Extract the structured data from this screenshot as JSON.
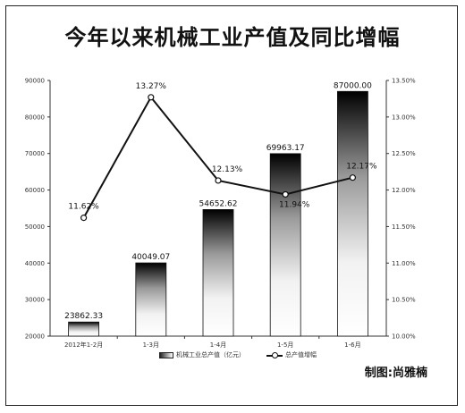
{
  "title": "今年以来机械工业产值及同比增幅",
  "credit": "制图:尚雅楠",
  "chart_data": {
    "type": "bar",
    "categories": [
      "2012年1-2月",
      "1-3月",
      "1-4月",
      "1-5月",
      "1-6月"
    ],
    "series": [
      {
        "name": "机械工业总产值（亿元）",
        "type": "bar",
        "axis": "left",
        "values": [
          23862.33,
          40049.07,
          54652.62,
          69963.17,
          87000.0
        ],
        "labels": [
          "23862.33",
          "40049.07",
          "54652.62",
          "69963.17",
          "87000.00"
        ]
      },
      {
        "name": "总产值增幅",
        "type": "line",
        "axis": "right",
        "values": [
          11.62,
          13.27,
          12.13,
          11.94,
          12.17
        ],
        "labels": [
          "11.62%",
          "13.27%",
          "12.13%",
          "11.94%",
          "12.17%"
        ]
      }
    ],
    "ylim": [
      20000,
      90000
    ],
    "yticks": [
      "20000",
      "30000",
      "40000",
      "50000",
      "60000",
      "70000",
      "80000",
      "90000"
    ],
    "y2lim": [
      10.0,
      13.5
    ],
    "y2ticks": [
      "10.00%",
      "10.50%",
      "11.00%",
      "11.50%",
      "12.00%",
      "12.50%",
      "13.00%",
      "13.50%"
    ],
    "legend": "bottom",
    "grid": false
  }
}
